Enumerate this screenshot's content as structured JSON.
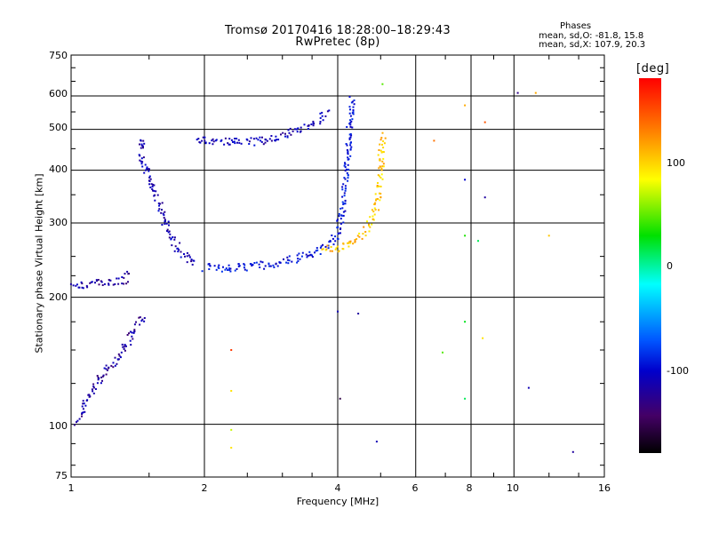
{
  "header": {
    "title_line1": "Tromsø 20170416 18:28:00–18:29:43",
    "title_line2": "RwPretec (8p)"
  },
  "stats": {
    "heading": "Phases",
    "line_o": "mean, sd,O: -81.8, 15.8",
    "line_x": "mean, sd,X: 107.9, 20.3"
  },
  "colorbar": {
    "unit_label": "[deg]",
    "ticks": [
      "100",
      "0",
      "-100"
    ],
    "range": [
      -180,
      180
    ],
    "colors": [
      "#000000",
      "#440066",
      "#0000cc",
      "#0055ff",
      "#00ffff",
      "#00e000",
      "#ffff00",
      "#ff7f00",
      "#ff0000"
    ]
  },
  "chart_data": {
    "type": "scatter",
    "title": "Tromsø 20170416 18:28:00–18:29:43",
    "subtitle": "RwPretec (8p)",
    "xlabel": "Frequency [MHz]",
    "ylabel": "Stationary phase Virtual Height [km]",
    "x_scale": "log",
    "y_scale": "log",
    "xlim": [
      1,
      16
    ],
    "ylim": [
      75,
      750
    ],
    "x_ticks": [
      "1",
      "2",
      "4",
      "6",
      "8",
      "10",
      "16"
    ],
    "y_ticks": [
      "750",
      "600",
      "500",
      "400",
      "300",
      "200",
      "100",
      "75"
    ],
    "grid": true,
    "color_by": "phase",
    "traces": [
      {
        "segment": "low-altitude trace",
        "points": [
          [
            1.03,
            102
          ],
          [
            1.06,
            110
          ],
          [
            1.1,
            118
          ],
          [
            1.15,
            128
          ],
          [
            1.2,
            136
          ],
          [
            1.25,
            142
          ],
          [
            1.3,
            150
          ],
          [
            1.35,
            160
          ],
          [
            1.4,
            170
          ],
          [
            1.45,
            182
          ]
        ],
        "phase": -110
      },
      {
        "segment": "E-region flat trace",
        "points": [
          [
            1.0,
            215
          ],
          [
            1.1,
            216
          ],
          [
            1.2,
            217
          ],
          [
            1.3,
            220
          ],
          [
            1.36,
            228
          ]
        ],
        "phase": -110
      },
      {
        "segment": "F-region cusp",
        "points": [
          [
            1.43,
            480
          ],
          [
            1.45,
            420
          ],
          [
            1.5,
            380
          ],
          [
            1.55,
            345
          ],
          [
            1.6,
            315
          ],
          [
            1.65,
            290
          ],
          [
            1.7,
            270
          ],
          [
            1.8,
            252
          ],
          [
            1.9,
            240
          ]
        ],
        "phase": -100
      },
      {
        "segment": "F-region O trace",
        "points": [
          [
            2.0,
            236
          ],
          [
            2.3,
            236
          ],
          [
            2.6,
            238
          ],
          [
            3.0,
            243
          ],
          [
            3.4,
            252
          ],
          [
            3.7,
            263
          ],
          [
            3.9,
            275
          ],
          [
            4.0,
            290
          ],
          [
            4.1,
            330
          ],
          [
            4.15,
            380
          ],
          [
            4.2,
            440
          ],
          [
            4.25,
            520
          ],
          [
            4.28,
            600
          ]
        ],
        "phase": -80
      },
      {
        "segment": "F-region X trace",
        "points": [
          [
            3.7,
            260
          ],
          [
            4.0,
            262
          ],
          [
            4.3,
            270
          ],
          [
            4.6,
            290
          ],
          [
            4.8,
            310
          ],
          [
            4.9,
            340
          ],
          [
            4.95,
            380
          ],
          [
            5.0,
            440
          ],
          [
            5.05,
            490
          ]
        ],
        "phase": 110
      },
      {
        "segment": "upper trace",
        "points": [
          [
            1.9,
            475
          ],
          [
            2.1,
            472
          ],
          [
            2.4,
            468
          ],
          [
            2.7,
            472
          ],
          [
            3.0,
            485
          ],
          [
            3.3,
            505
          ],
          [
            3.6,
            530
          ],
          [
            3.8,
            555
          ]
        ],
        "phase": -100
      }
    ],
    "scattered_points": [
      {
        "x": 5.05,
        "y": 640,
        "phase": 60
      },
      {
        "x": 7.75,
        "y": 570,
        "phase": 120
      },
      {
        "x": 8.6,
        "y": 520,
        "phase": 150
      },
      {
        "x": 10.2,
        "y": 610,
        "phase": -120
      },
      {
        "x": 11.2,
        "y": 610,
        "phase": 120
      },
      {
        "x": 6.6,
        "y": 470,
        "phase": 140
      },
      {
        "x": 7.75,
        "y": 380,
        "phase": -90
      },
      {
        "x": 8.6,
        "y": 345,
        "phase": -110
      },
      {
        "x": 7.75,
        "y": 280,
        "phase": 50
      },
      {
        "x": 8.3,
        "y": 272,
        "phase": 30
      },
      {
        "x": 12.0,
        "y": 280,
        "phase": 110
      },
      {
        "x": 4.0,
        "y": 185,
        "phase": -100
      },
      {
        "x": 4.45,
        "y": 183,
        "phase": -110
      },
      {
        "x": 2.3,
        "y": 150,
        "phase": 160
      },
      {
        "x": 2.3,
        "y": 120,
        "phase": 100
      },
      {
        "x": 4.05,
        "y": 115,
        "phase": -150
      },
      {
        "x": 7.75,
        "y": 175,
        "phase": 40
      },
      {
        "x": 8.5,
        "y": 160,
        "phase": 100
      },
      {
        "x": 6.9,
        "y": 148,
        "phase": 60
      },
      {
        "x": 7.75,
        "y": 115,
        "phase": 30
      },
      {
        "x": 10.8,
        "y": 122,
        "phase": -100
      },
      {
        "x": 4.9,
        "y": 91,
        "phase": -100
      },
      {
        "x": 13.6,
        "y": 86,
        "phase": -110
      },
      {
        "x": 2.3,
        "y": 97,
        "phase": 80
      },
      {
        "x": 2.3,
        "y": 88,
        "phase": 100
      }
    ]
  }
}
